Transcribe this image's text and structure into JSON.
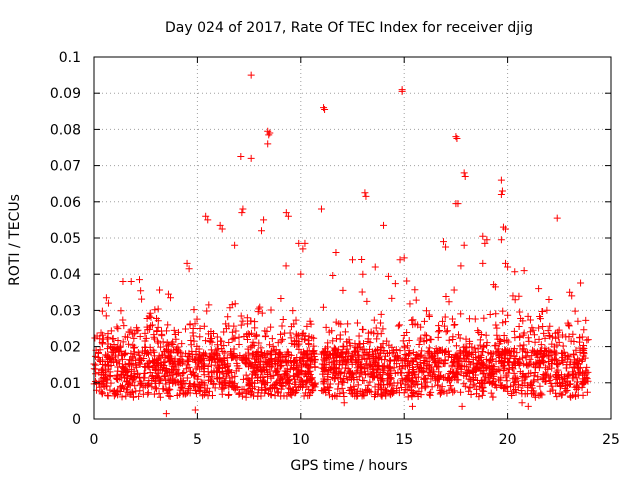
{
  "chart_data": {
    "type": "scatter",
    "title": "Day 024 of 2017, Rate Of TEC Index for receiver djig",
    "xlabel": "GPS time / hours",
    "ylabel": "ROTI / TECUs",
    "xlim": [
      0,
      25
    ],
    "ylim": [
      0,
      0.1
    ],
    "grid": true,
    "marker": "plus",
    "color": "#ff0000",
    "x_ticks": [
      {
        "value": 0,
        "label": "0"
      },
      {
        "value": 5,
        "label": "5"
      },
      {
        "value": 10,
        "label": "10"
      },
      {
        "value": 15,
        "label": "15"
      },
      {
        "value": 20,
        "label": "20"
      },
      {
        "value": 25,
        "label": "25"
      }
    ],
    "y_ticks": [
      {
        "value": 0,
        "label": "0"
      },
      {
        "value": 0.01,
        "label": "0.01"
      },
      {
        "value": 0.02,
        "label": "0.02"
      },
      {
        "value": 0.03,
        "label": "0.03"
      },
      {
        "value": 0.04,
        "label": "0.04"
      },
      {
        "value": 0.05,
        "label": "0.05"
      },
      {
        "value": 0.06,
        "label": "0.06"
      },
      {
        "value": 0.07,
        "label": "0.07"
      },
      {
        "value": 0.08,
        "label": "0.08"
      },
      {
        "value": 0.09,
        "label": "0.09"
      },
      {
        "value": 0.1,
        "label": "0.1"
      }
    ],
    "data_extent_x": [
      0,
      23.9
    ],
    "data_gaps_x": [
      [
        10.7,
        11.0
      ]
    ],
    "points": [
      [
        7.6,
        0.095
      ],
      [
        14.9,
        0.091
      ],
      [
        14.9,
        0.0905
      ],
      [
        11.1,
        0.086
      ],
      [
        11.15,
        0.0855
      ],
      [
        8.4,
        0.0795
      ],
      [
        8.5,
        0.079
      ],
      [
        8.45,
        0.0785
      ],
      [
        17.5,
        0.078
      ],
      [
        17.55,
        0.0775
      ],
      [
        8.4,
        0.076
      ],
      [
        7.1,
        0.0725
      ],
      [
        7.6,
        0.072
      ],
      [
        17.9,
        0.068
      ],
      [
        17.95,
        0.067
      ],
      [
        19.7,
        0.066
      ],
      [
        19.75,
        0.063
      ],
      [
        19.7,
        0.062
      ],
      [
        13.1,
        0.0625
      ],
      [
        13.15,
        0.0615
      ],
      [
        17.5,
        0.0595
      ],
      [
        17.6,
        0.0595
      ],
      [
        7.2,
        0.058
      ],
      [
        7.15,
        0.057
      ],
      [
        11.0,
        0.058
      ],
      [
        9.3,
        0.057
      ],
      [
        9.4,
        0.056
      ],
      [
        5.4,
        0.056
      ],
      [
        5.5,
        0.055
      ],
      [
        8.2,
        0.055
      ],
      [
        22.4,
        0.0555
      ],
      [
        14.0,
        0.0535
      ],
      [
        6.1,
        0.0535
      ],
      [
        6.2,
        0.0525
      ],
      [
        19.8,
        0.053
      ],
      [
        19.9,
        0.0525
      ],
      [
        8.1,
        0.052
      ],
      [
        4.6,
        0.0415
      ],
      [
        4.5,
        0.043
      ],
      [
        6.8,
        0.048
      ],
      [
        9.9,
        0.0485
      ],
      [
        10.2,
        0.0485
      ],
      [
        10.1,
        0.047
      ],
      [
        16.9,
        0.049
      ],
      [
        17.0,
        0.0475
      ],
      [
        18.8,
        0.0505
      ],
      [
        19.0,
        0.0495
      ],
      [
        18.9,
        0.0485
      ],
      [
        19.7,
        0.0495
      ],
      [
        17.9,
        0.048
      ],
      [
        11.7,
        0.046
      ],
      [
        12.5,
        0.044
      ],
      [
        14.8,
        0.044
      ],
      [
        15.0,
        0.0445
      ],
      [
        13.6,
        0.042
      ],
      [
        13.0,
        0.04
      ],
      [
        18.8,
        0.043
      ],
      [
        19.9,
        0.043
      ],
      [
        20.0,
        0.042
      ],
      [
        20.8,
        0.041
      ],
      [
        23.0,
        0.035
      ],
      [
        23.1,
        0.034
      ],
      [
        22.0,
        0.033
      ],
      [
        21.5,
        0.036
      ],
      [
        1.4,
        0.038
      ],
      [
        1.8,
        0.038
      ],
      [
        0.6,
        0.0335
      ],
      [
        0.7,
        0.032
      ],
      [
        3.6,
        0.0345
      ],
      [
        3.7,
        0.0335
      ],
      [
        3.5,
        0.0015
      ],
      [
        4.9,
        0.0025
      ],
      [
        15.4,
        0.0035
      ],
      [
        17.8,
        0.0035
      ],
      [
        20.7,
        0.0045
      ],
      [
        21.0,
        0.0035
      ],
      [
        12.1,
        0.0045
      ],
      [
        0.1,
        0.019
      ],
      [
        0.2,
        0.017
      ],
      [
        23.4,
        0.027
      ]
    ]
  }
}
